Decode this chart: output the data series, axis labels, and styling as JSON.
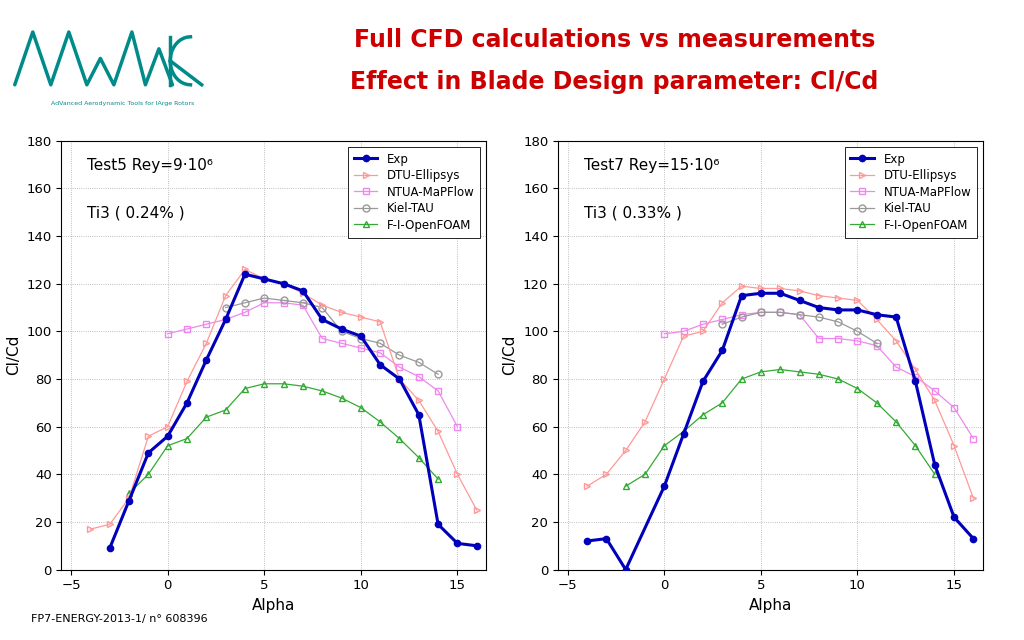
{
  "title_line1": "Full CFD calculations vs measurements",
  "title_line2": "Effect in Blade Design parameter: Cl/Cd",
  "title_color": "#cc0000",
  "footer_text": "FP7-ENERGY-2013-1/ n° 608396",
  "teal_line_color": "#008B8B",
  "plot1": {
    "label_line1": "Test5 Rey=9·10⁶",
    "label_line2": "Ti3 ( 0.24% )",
    "xlabel": "Alpha",
    "ylabel": "Cl/Cd",
    "xlim": [
      -5.5,
      16.5
    ],
    "ylim": [
      0,
      180
    ],
    "xticks": [
      -5,
      0,
      5,
      10,
      15
    ],
    "yticks": [
      0,
      20,
      40,
      60,
      80,
      100,
      120,
      140,
      160,
      180
    ],
    "exp": {
      "alpha": [
        -3,
        -2,
        -1,
        0,
        1,
        2,
        3,
        4,
        5,
        6,
        7,
        8,
        9,
        10,
        11,
        12,
        13,
        14,
        15,
        16
      ],
      "clcd": [
        9,
        29,
        49,
        56,
        70,
        88,
        105,
        124,
        122,
        120,
        117,
        105,
        101,
        98,
        86,
        80,
        65,
        19,
        11,
        10
      ]
    },
    "dtu": {
      "alpha": [
        -4,
        -3,
        -2,
        -1,
        0,
        1,
        2,
        3,
        4,
        5,
        6,
        7,
        8,
        9,
        10,
        11,
        12,
        13,
        14,
        15,
        16
      ],
      "clcd": [
        17,
        19,
        30,
        56,
        60,
        79,
        95,
        115,
        126,
        122,
        120,
        116,
        111,
        108,
        106,
        104,
        80,
        71,
        58,
        40,
        25
      ]
    },
    "ntua": {
      "alpha": [
        0,
        1,
        2,
        3,
        4,
        5,
        6,
        7,
        8,
        9,
        10,
        11,
        12,
        13,
        14,
        15
      ],
      "clcd": [
        99,
        101,
        103,
        105,
        108,
        112,
        112,
        111,
        97,
        95,
        93,
        91,
        85,
        81,
        75,
        60
      ]
    },
    "kiel": {
      "alpha": [
        3,
        4,
        5,
        6,
        7,
        8,
        9,
        10,
        11,
        12,
        13,
        14
      ],
      "clcd": [
        110,
        112,
        114,
        113,
        112,
        110,
        100,
        97,
        95,
        90,
        87,
        82
      ]
    },
    "openfoam": {
      "alpha": [
        -2,
        -1,
        0,
        1,
        2,
        3,
        4,
        5,
        6,
        7,
        8,
        9,
        10,
        11,
        12,
        13,
        14
      ],
      "clcd": [
        32,
        40,
        52,
        55,
        64,
        67,
        76,
        78,
        78,
        77,
        75,
        72,
        68,
        62,
        55,
        47,
        38
      ]
    }
  },
  "plot2": {
    "label_line1": "Test7 Rey=15·10⁶",
    "label_line2": "Ti3 ( 0.33% )",
    "xlabel": "Alpha",
    "ylabel": "Cl/Cd",
    "xlim": [
      -5.5,
      16.5
    ],
    "ylim": [
      0,
      180
    ],
    "xticks": [
      -5,
      0,
      5,
      10,
      15
    ],
    "yticks": [
      0,
      20,
      40,
      60,
      80,
      100,
      120,
      140,
      160,
      180
    ],
    "exp": {
      "alpha": [
        -4,
        -3,
        -2,
        0,
        1,
        2,
        3,
        4,
        5,
        6,
        7,
        8,
        9,
        10,
        11,
        12,
        13,
        14,
        15,
        16
      ],
      "clcd": [
        12,
        13,
        0,
        35,
        57,
        79,
        92,
        115,
        116,
        116,
        113,
        110,
        109,
        109,
        107,
        106,
        79,
        44,
        22,
        13
      ]
    },
    "dtu": {
      "alpha": [
        -4,
        -3,
        -2,
        -1,
        0,
        1,
        2,
        3,
        4,
        5,
        6,
        7,
        8,
        9,
        10,
        11,
        12,
        13,
        14,
        15,
        16
      ],
      "clcd": [
        35,
        40,
        50,
        62,
        80,
        98,
        100,
        112,
        119,
        118,
        118,
        117,
        115,
        114,
        113,
        105,
        96,
        84,
        71,
        52,
        30
      ]
    },
    "ntua": {
      "alpha": [
        0,
        1,
        2,
        3,
        4,
        5,
        6,
        7,
        8,
        9,
        10,
        11,
        12,
        13,
        14,
        15,
        16
      ],
      "clcd": [
        99,
        100,
        103,
        105,
        107,
        108,
        108,
        107,
        97,
        97,
        96,
        94,
        85,
        81,
        75,
        68,
        55
      ]
    },
    "kiel": {
      "alpha": [
        3,
        4,
        5,
        6,
        7,
        8,
        9,
        10,
        11
      ],
      "clcd": [
        103,
        106,
        108,
        108,
        107,
        106,
        104,
        100,
        95
      ]
    },
    "openfoam": {
      "alpha": [
        -2,
        -1,
        0,
        1,
        2,
        3,
        4,
        5,
        6,
        7,
        8,
        9,
        10,
        11,
        12,
        13,
        14
      ],
      "clcd": [
        35,
        40,
        52,
        58,
        65,
        70,
        80,
        83,
        84,
        83,
        82,
        80,
        76,
        70,
        62,
        52,
        40
      ]
    }
  },
  "exp_color": "#0000bb",
  "dtu_color": "#ff9999",
  "ntua_color": "#ee88ee",
  "kiel_color": "#999999",
  "openfoam_color": "#33aa33",
  "bg_color": "#ffffff"
}
